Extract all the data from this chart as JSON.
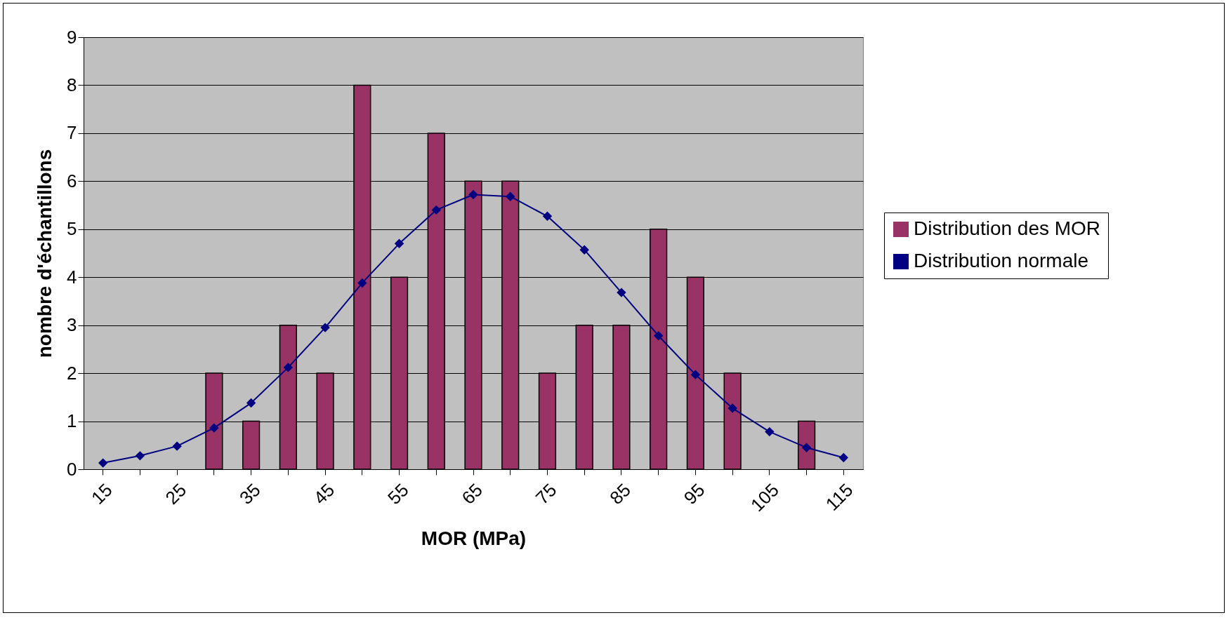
{
  "chart_data": {
    "type": "bar",
    "xlabel": "MOR (MPa)",
    "ylabel": "nombre d'échantillons",
    "categories": [
      "15",
      null,
      "25",
      null,
      "35",
      null,
      "45",
      null,
      "55",
      null,
      "65",
      null,
      "75",
      null,
      "85",
      null,
      "95",
      null,
      "105",
      null,
      "115"
    ],
    "series": [
      {
        "name": "Distribution des MOR",
        "color": "#993366",
        "values": [
          0,
          0,
          0,
          2,
          1,
          3,
          2,
          8,
          4,
          7,
          6,
          6,
          2,
          3,
          3,
          5,
          4,
          2,
          0,
          1,
          0
        ]
      },
      {
        "name": "Distribution normale",
        "type": "line",
        "color": "#000080",
        "values": [
          0.13,
          0.28,
          0.48,
          0.86,
          1.38,
          2.12,
          2.95,
          3.88,
          4.7,
          5.4,
          5.72,
          5.68,
          5.27,
          4.57,
          3.68,
          2.78,
          1.97,
          1.27,
          0.78,
          0.45,
          0.24
        ]
      }
    ],
    "ylim": [
      0,
      9
    ],
    "yticks": [
      0,
      1,
      2,
      3,
      4,
      5,
      6,
      7,
      8,
      9
    ],
    "grid": "y",
    "legend": "right",
    "marker": "diamond",
    "line_style": "solid"
  }
}
